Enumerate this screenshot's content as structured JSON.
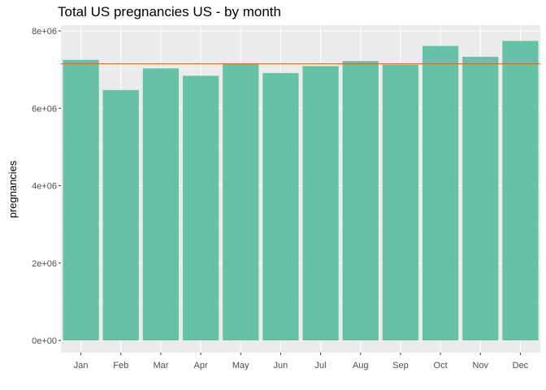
{
  "chart_data": {
    "type": "bar",
    "title": "Total US pregnancies US - by month",
    "xlabel": "",
    "ylabel": "pregnancies",
    "categories": [
      "Jan",
      "Feb",
      "Mar",
      "Apr",
      "May",
      "Jun",
      "Jul",
      "Aug",
      "Sep",
      "Oct",
      "Nov",
      "Dec"
    ],
    "values": [
      7250000,
      6470000,
      7030000,
      6840000,
      7150000,
      6910000,
      7090000,
      7220000,
      7130000,
      7610000,
      7330000,
      7740000
    ],
    "ylim": [
      0,
      8000000
    ],
    "yticks": [
      0,
      2000000,
      4000000,
      6000000,
      8000000
    ],
    "ytick_labels": [
      "0e+00",
      "2e+06",
      "4e+06",
      "6e+06",
      "8e+06"
    ],
    "reference_line": {
      "value": 7150000,
      "color": "#cd6b2e"
    },
    "bar_color": "#66c2a5",
    "panel_background": "#ebebeb",
    "grid": true,
    "legend": "none"
  }
}
